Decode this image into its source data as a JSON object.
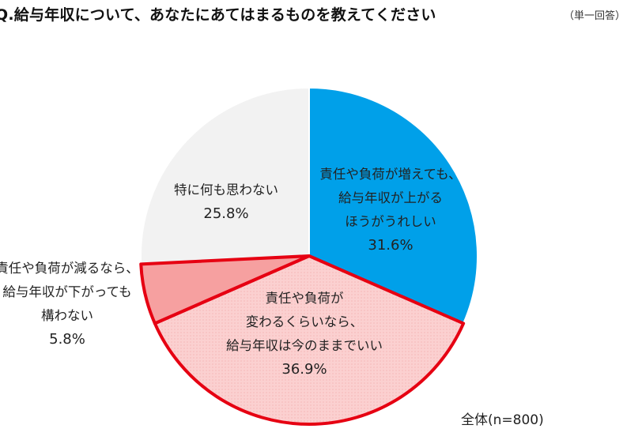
{
  "title": "Q.給与年収について、あなたにあてはまるものを教えてください",
  "subtitle": "（単一回答）",
  "footnote": "全体(n=800)",
  "colors": {
    "seg1_fill": "#00a0e9",
    "seg2_fill": "#fbd2d2",
    "seg3_fill": "#f6a0a0",
    "seg4_fill": "#f2f2f2",
    "highlight_stroke": "#e60012",
    "divider_stroke": "#ffffff"
  },
  "chart_data": {
    "type": "pie",
    "title": "Q.給与年収について、あなたにあてはまるものを教えてください",
    "start": "12 o'clock, clockwise",
    "segments": [
      {
        "label_lines": [
          "責任や負荷が増えても、",
          "給与年収が上がる",
          "ほうがうれしい"
        ],
        "value": 31.6,
        "value_label": "31.6%",
        "fill": "#00a0e9",
        "highlighted": false
      },
      {
        "label_lines": [
          "責任や負荷が",
          "変わるくらいなら、",
          "給与年収は今のままでいい"
        ],
        "value": 36.9,
        "value_label": "36.9%",
        "fill": "#fbd2d2",
        "highlighted": true
      },
      {
        "label_lines": [
          "責任や負荷が減るなら、",
          "給与年収が下がっても",
          "構わない"
        ],
        "value": 5.8,
        "value_label": "5.8%",
        "fill": "#f6a0a0",
        "highlighted": true
      },
      {
        "label_lines": [
          "特に何も思わない"
        ],
        "value": 25.8,
        "value_label": "25.8%",
        "fill": "#f2f2f2",
        "highlighted": false
      }
    ]
  }
}
